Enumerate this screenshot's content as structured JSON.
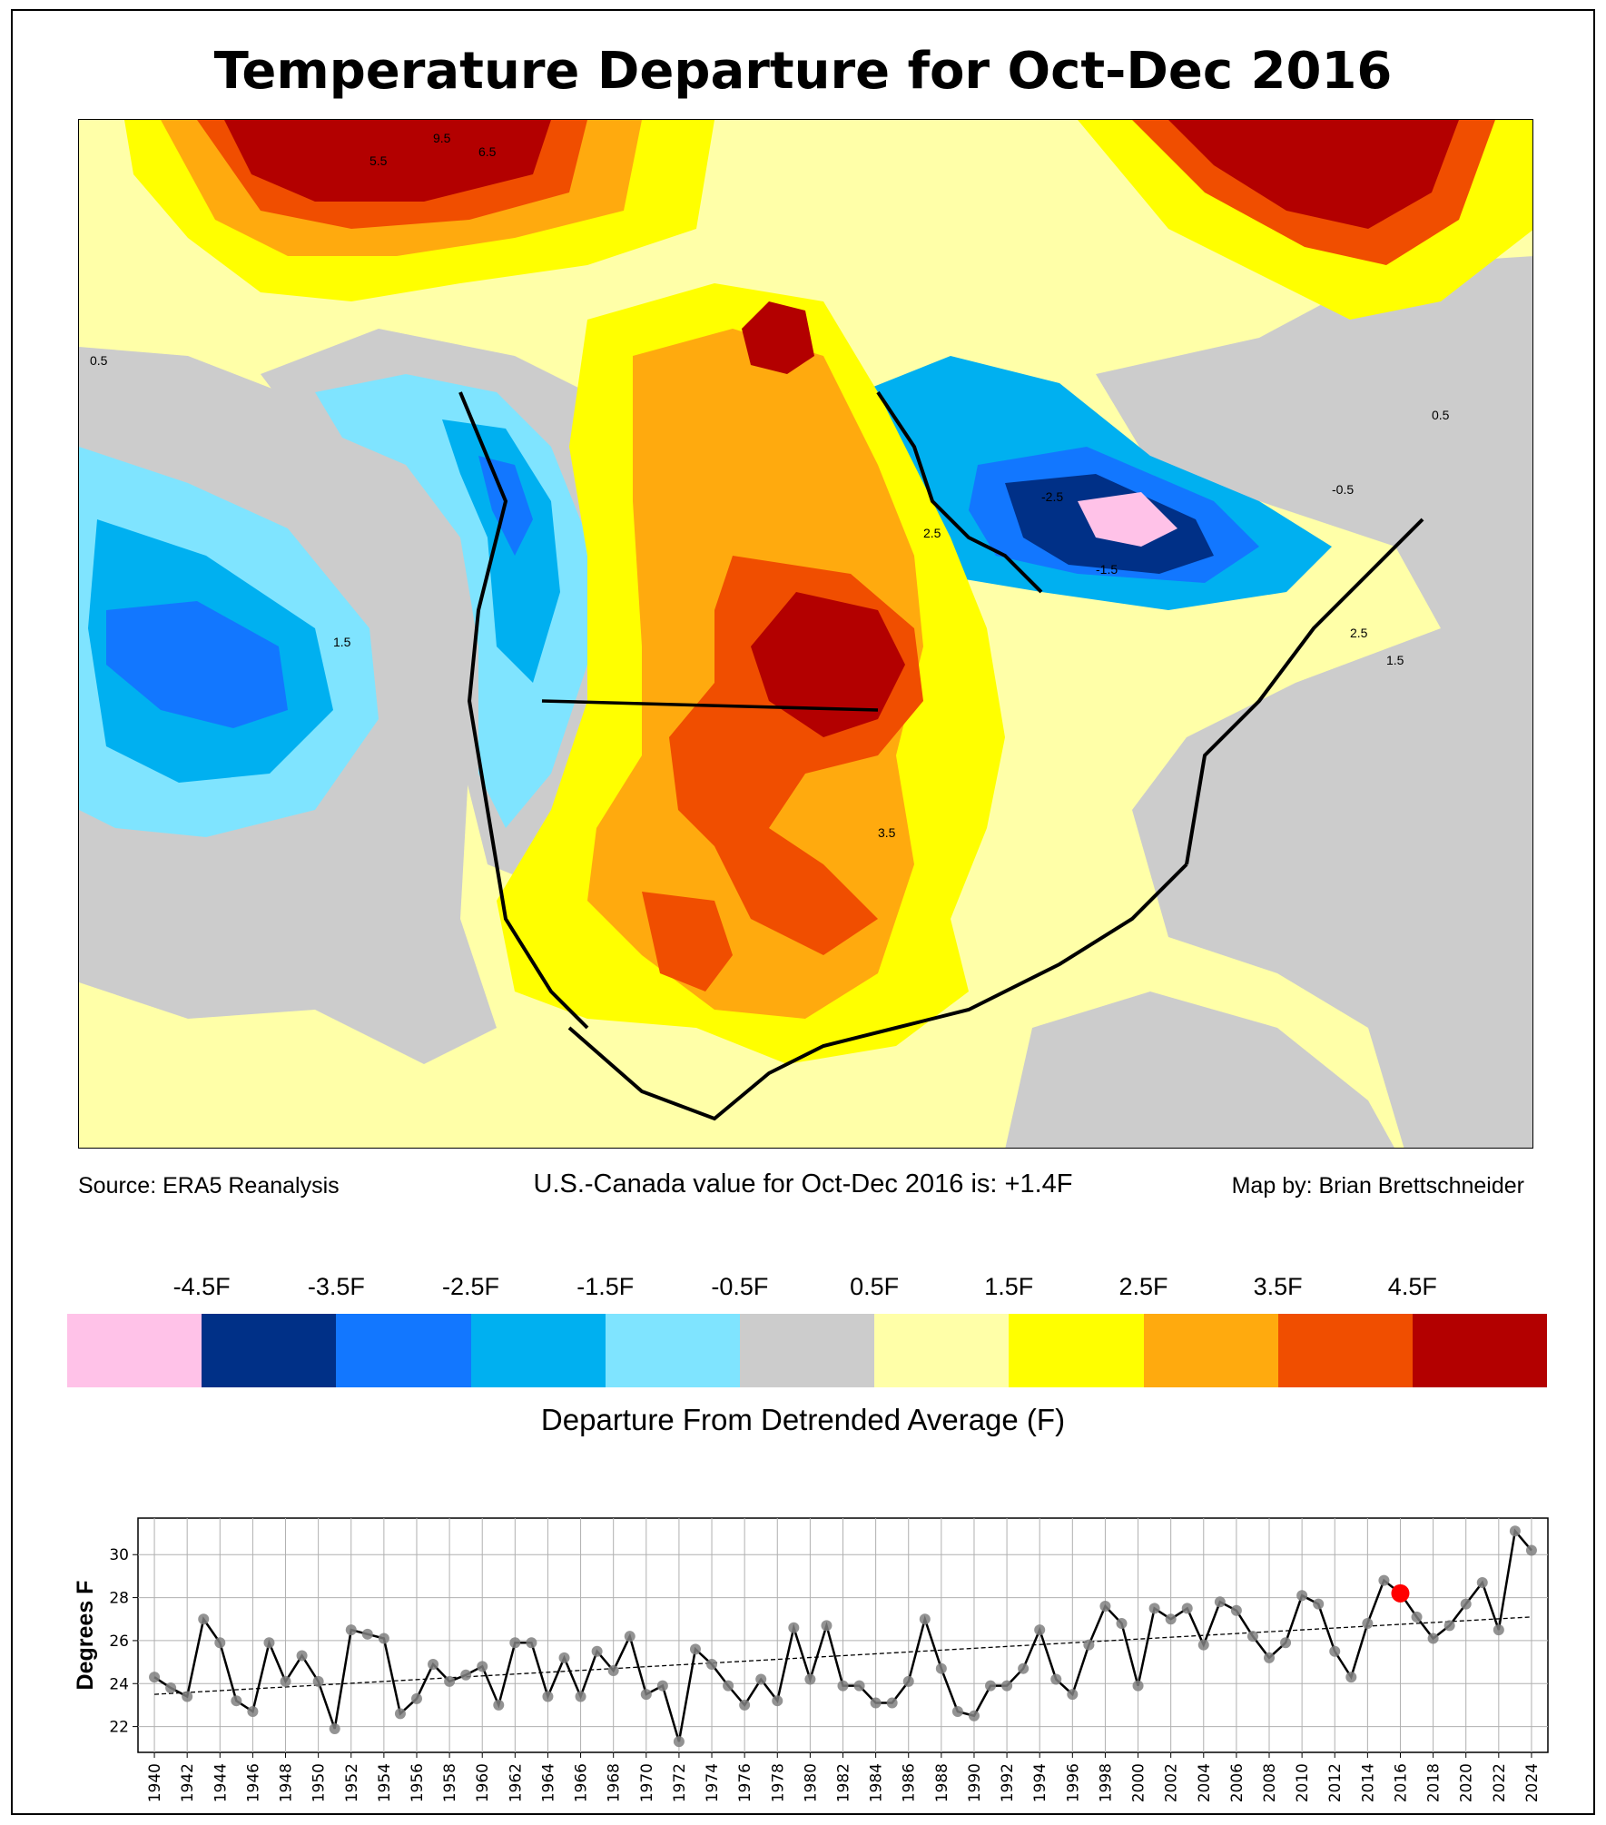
{
  "title": "Temperature Departure for Oct-Dec 2016",
  "footer": {
    "source": "Source: ERA5 Reanalysis",
    "value_text": "U.S.-Canada value for Oct-Dec 2016 is: +1.4F",
    "credit": "Map by: Brian Brettschneider"
  },
  "colorbar": {
    "title": "Departure From Detrended Average (F)",
    "labels": [
      "-4.5F",
      "-3.5F",
      "-2.5F",
      "-1.5F",
      "-0.5F",
      "0.5F",
      "1.5F",
      "2.5F",
      "3.5F",
      "4.5F"
    ],
    "colors": [
      "#ffc2e8",
      "#003087",
      "#1277ff",
      "#00b0f0",
      "#7fe4ff",
      "#cccccc",
      "#ffffa8",
      "#ffff00",
      "#ffaa0e",
      "#f04e00",
      "#b30000"
    ]
  },
  "map_labels": {
    "contours": [
      "0.5",
      "-0.5",
      "-1.5",
      "-2.5",
      "1.5",
      "2.5",
      "3.5",
      "5.5",
      "6.5",
      "9.5"
    ]
  },
  "chart_data": {
    "type": "line",
    "ylabel": "Degrees F",
    "xlabel": "",
    "xlim": [
      1939,
      2025
    ],
    "ylim": [
      20.8,
      31.7
    ],
    "yticks": [
      22,
      24,
      26,
      28,
      30
    ],
    "xticks": [
      1940,
      1942,
      1944,
      1946,
      1948,
      1950,
      1952,
      1954,
      1956,
      1958,
      1960,
      1962,
      1964,
      1966,
      1968,
      1970,
      1972,
      1974,
      1976,
      1978,
      1980,
      1982,
      1984,
      1986,
      1988,
      1990,
      1992,
      1994,
      1996,
      1998,
      2000,
      2002,
      2004,
      2006,
      2008,
      2010,
      2012,
      2014,
      2016,
      2018,
      2020,
      2022,
      2024
    ],
    "highlight_year": 2016,
    "trend": {
      "start": [
        1940,
        23.5
      ],
      "end": [
        2024,
        27.1
      ]
    },
    "years": [
      1940,
      1941,
      1942,
      1943,
      1944,
      1945,
      1946,
      1947,
      1948,
      1949,
      1950,
      1951,
      1952,
      1953,
      1954,
      1955,
      1956,
      1957,
      1958,
      1959,
      1960,
      1961,
      1962,
      1963,
      1964,
      1965,
      1966,
      1967,
      1968,
      1969,
      1970,
      1971,
      1972,
      1973,
      1974,
      1975,
      1976,
      1977,
      1978,
      1979,
      1980,
      1981,
      1982,
      1983,
      1984,
      1985,
      1986,
      1987,
      1988,
      1989,
      1990,
      1991,
      1992,
      1993,
      1994,
      1995,
      1996,
      1997,
      1998,
      1999,
      2000,
      2001,
      2002,
      2003,
      2004,
      2005,
      2006,
      2007,
      2008,
      2009,
      2010,
      2011,
      2012,
      2013,
      2014,
      2015,
      2016,
      2017,
      2018,
      2019,
      2020,
      2021,
      2022,
      2023,
      2024
    ],
    "values": [
      24.3,
      23.8,
      23.4,
      27.0,
      25.9,
      23.2,
      22.7,
      25.9,
      24.1,
      25.3,
      24.1,
      21.9,
      26.5,
      26.3,
      26.1,
      22.6,
      23.3,
      24.9,
      24.1,
      24.4,
      24.8,
      23.0,
      25.9,
      25.9,
      23.4,
      25.2,
      23.4,
      25.5,
      24.6,
      26.2,
      23.5,
      23.9,
      21.3,
      25.6,
      24.9,
      23.9,
      23.0,
      24.2,
      23.2,
      26.6,
      24.2,
      26.7,
      23.9,
      23.9,
      23.1,
      23.1,
      24.1,
      27.0,
      24.7,
      22.7,
      22.5,
      23.9,
      23.9,
      24.7,
      26.5,
      24.2,
      23.5,
      25.8,
      27.6,
      26.8,
      23.9,
      27.5,
      27.0,
      27.5,
      25.8,
      27.8,
      27.4,
      26.2,
      25.2,
      25.9,
      28.1,
      27.7,
      25.5,
      24.3,
      26.8,
      28.8,
      28.2,
      27.1,
      26.1,
      26.7,
      27.7,
      28.7,
      26.5,
      31.1,
      30.2
    ]
  }
}
